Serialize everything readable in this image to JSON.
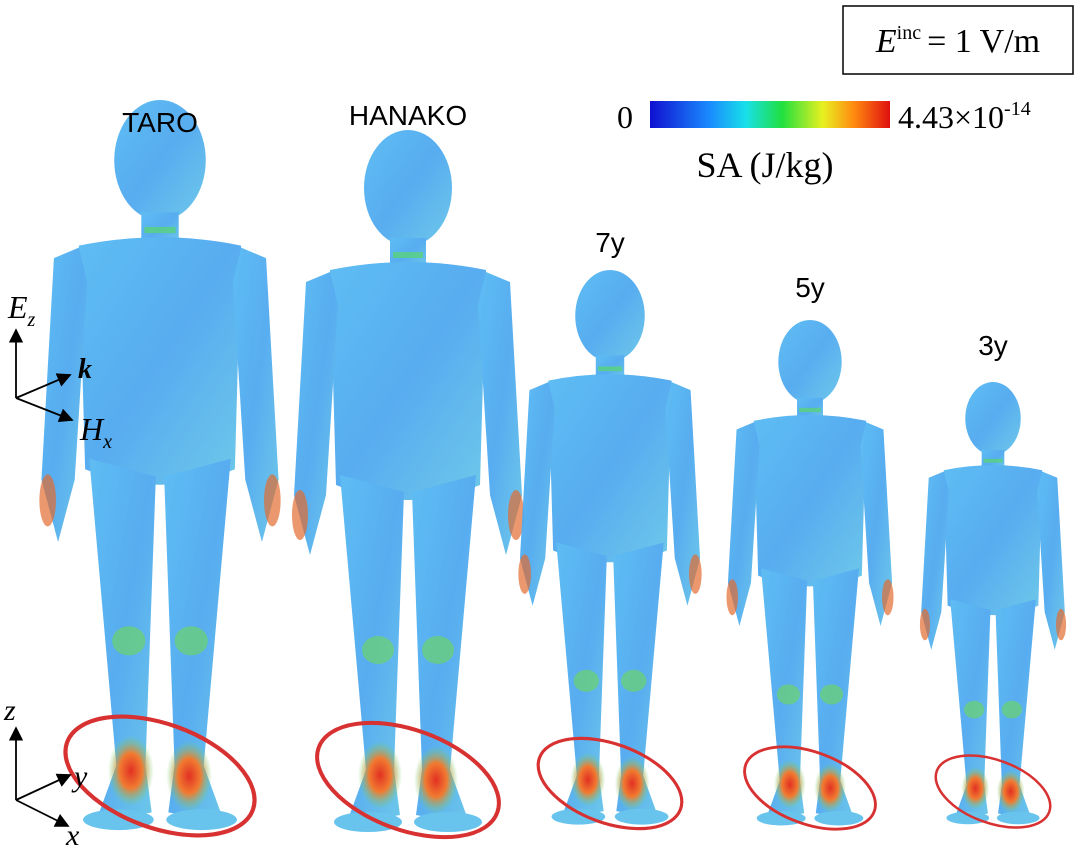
{
  "incident": {
    "symbol": "E",
    "superscript": "inc",
    "value": "= 1 V/m"
  },
  "colorbar": {
    "min": "0",
    "max_mantissa": "4.43×10",
    "max_exponent": "-14",
    "label": "SA (J/kg)"
  },
  "models": [
    {
      "label": "TARO"
    },
    {
      "label": "HANAKO"
    },
    {
      "label": "7y"
    },
    {
      "label": "5y"
    },
    {
      "label": "3y"
    }
  ],
  "field_axes": {
    "e": "E",
    "e_sub": "z",
    "k": "k",
    "h": "H",
    "h_sub": "x"
  },
  "coord_axes": {
    "z": "z",
    "y": "y",
    "x": "x"
  }
}
